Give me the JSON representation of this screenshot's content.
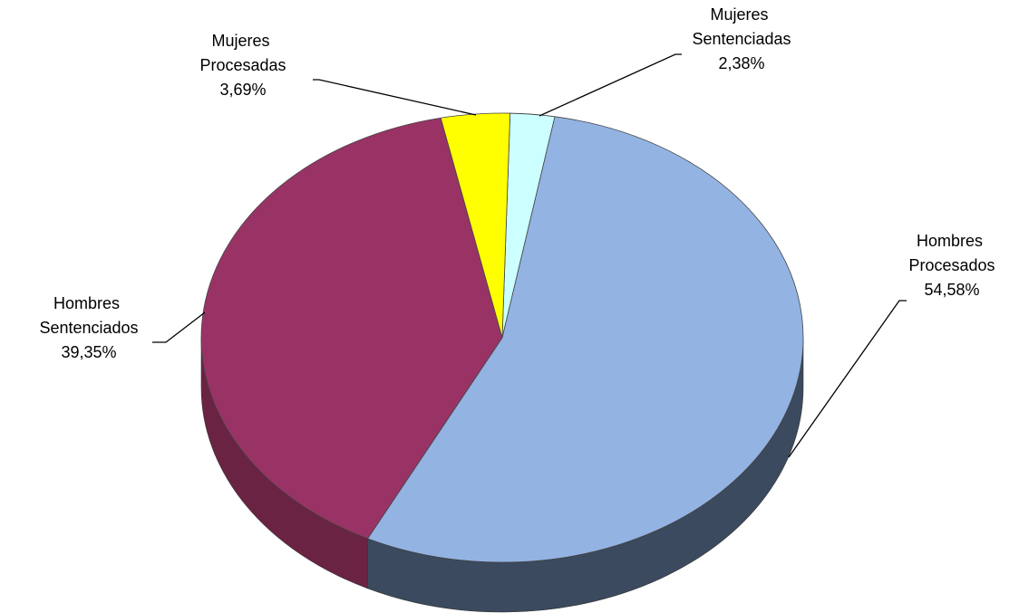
{
  "chart_data": {
    "type": "pie",
    "categories": [
      "Mujeres Sentenciadas",
      "Hombres Procesados",
      "Hombres Sentenciados",
      "Mujeres Procesadas"
    ],
    "values": [
      2.38,
      54.58,
      39.35,
      3.69
    ],
    "value_labels": [
      "2,38%",
      "54,58%",
      "39,35%",
      "3,69%"
    ],
    "colors": [
      "#ccffff",
      "#93b3e3",
      "#993366",
      "#ffff00"
    ],
    "side_colors": [
      "#8aa8a8",
      "#3b4a5e",
      "#6b2343",
      "#a8a800"
    ]
  }
}
